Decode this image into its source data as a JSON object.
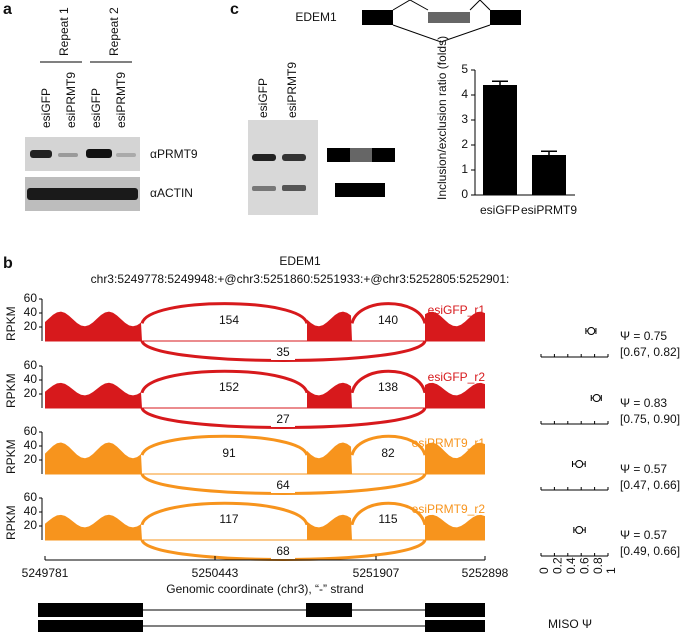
{
  "panel_a": {
    "label": "a",
    "groups": [
      "Repeat 1",
      "Repeat 2"
    ],
    "lanes": [
      "esiGFP",
      "esiPRMT9",
      "esiGFP",
      "esiPRMT9"
    ],
    "blots": [
      "αPRMT9",
      "αACTIN"
    ]
  },
  "panel_c": {
    "label": "c",
    "gene": "EDEM1",
    "lanes": [
      "esiGFP",
      "esiPRMT9"
    ],
    "chart": {
      "type": "bar",
      "ylabel": "Inclusion/exclusion ratio (folds)",
      "categories": [
        "esiGFP",
        "esiPRMT9"
      ],
      "values": [
        4.4,
        1.6
      ],
      "errors": [
        0.15,
        0.15
      ],
      "ylim": [
        0,
        5
      ],
      "yticks": [
        0,
        1,
        2,
        3,
        4,
        5
      ],
      "color": "#000000"
    }
  },
  "panel_b": {
    "label": "b",
    "title": "EDEM1",
    "subtitle": "chr3:5249778:5249948:+@chr3:5251860:5251933:+@chr3:5252805:5252901:",
    "ylabel": "RPKM",
    "ylim": [
      0,
      60
    ],
    "yticks": [
      20,
      40,
      60
    ],
    "xticks": [
      5249781,
      5250443,
      5251907,
      5252898
    ],
    "xlabel": "Genomic coordinate (chr3), “-” strand",
    "tracks": [
      {
        "name": "esiGFP_r1",
        "color": "#d7191c",
        "junctions": [
          154,
          140,
          35
        ],
        "psi": 0.75,
        "psi_label": "Ψ = 0.75",
        "ci": [
          0.67,
          0.82
        ],
        "ci_label": "[0.67, 0.82]"
      },
      {
        "name": "esiGFP_r2",
        "color": "#d7191c",
        "junctions": [
          152,
          138,
          27
        ],
        "psi": 0.83,
        "psi_label": "Ψ = 0.83",
        "ci": [
          0.75,
          0.9
        ],
        "ci_label": "[0.75, 0.90]"
      },
      {
        "name": "esiPRMT9_r1",
        "color": "#f7941d",
        "junctions": [
          91,
          82,
          64
        ],
        "psi": 0.57,
        "psi_label": "Ψ = 0.57",
        "ci": [
          0.47,
          0.66
        ],
        "ci_label": "[0.47, 0.66]"
      },
      {
        "name": "esiPRMT9_r2",
        "color": "#f7941d",
        "junctions": [
          117,
          115,
          68
        ],
        "psi": 0.57,
        "psi_label": "Ψ = 0.57",
        "ci": [
          0.49,
          0.66
        ],
        "ci_label": "[0.49, 0.66]"
      }
    ],
    "miso": {
      "xlabel": "MISO Ψ",
      "xlim": [
        0,
        1
      ],
      "xticks": [
        0,
        0.2,
        0.4,
        0.6,
        0.8,
        1
      ]
    }
  }
}
